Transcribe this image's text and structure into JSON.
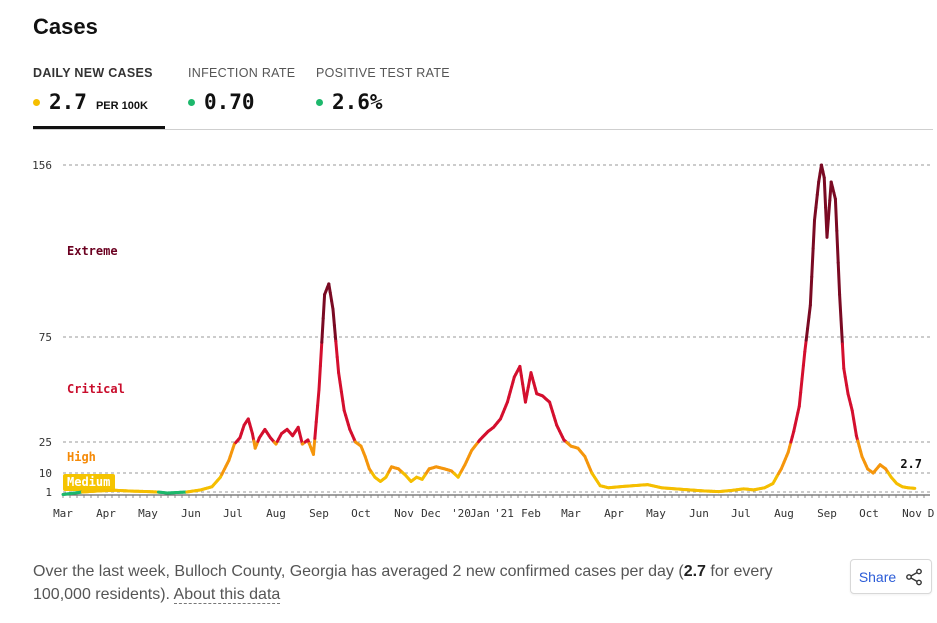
{
  "header": {
    "title": "Cases"
  },
  "tabs": [
    {
      "label": "DAILY NEW CASES",
      "value": "2.7",
      "unit": "PER 100K",
      "dot_color": "#f5be00",
      "active": true
    },
    {
      "label": "INFECTION RATE",
      "value": "0.70",
      "unit": "",
      "dot_color": "#1db86c",
      "active": false
    },
    {
      "label": "POSITIVE TEST RATE",
      "value": "2.6%",
      "unit": "",
      "dot_color": "#1db86c",
      "active": false
    }
  ],
  "chart_data": {
    "type": "line",
    "title": "",
    "xlabel": "",
    "ylabel": "",
    "x_tick_labels": [
      "Mar",
      "Apr",
      "May",
      "Jun",
      "Jul",
      "Aug",
      "Sep",
      "Oct",
      "Nov",
      "Dec",
      "'20",
      "Jan",
      "'21",
      "Feb",
      "Mar",
      "Apr",
      "May",
      "Jun",
      "Jul",
      "Aug",
      "Sep",
      "Oct",
      "Nov",
      "D"
    ],
    "y_ticks": [
      1,
      10,
      25,
      75,
      156
    ],
    "ylim": [
      0,
      156
    ],
    "grid": true,
    "zones": [
      {
        "label": "Extreme",
        "color": "#6b0020"
      },
      {
        "label": "Critical",
        "color": "#c90d2c"
      },
      {
        "label": "High",
        "color": "#f58a07"
      },
      {
        "label": "Medium",
        "color": "#ffffff",
        "background": "#f5c400"
      }
    ],
    "series": [
      {
        "values": [
          [
            "2020-03-01",
            0.5
          ],
          [
            "2020-03-15",
            1.0
          ],
          [
            "2020-03-29",
            1.6
          ],
          [
            "2020-04-08",
            1.8
          ],
          [
            "2020-04-20",
            1.4
          ],
          [
            "2020-05-01",
            1.2
          ],
          [
            "2020-05-15",
            0.8
          ],
          [
            "2020-05-29",
            1.0
          ],
          [
            "2020-06-08",
            2.0
          ],
          [
            "2020-06-16",
            3.5
          ],
          [
            "2020-06-22",
            8
          ],
          [
            "2020-06-28",
            16
          ],
          [
            "2020-07-02",
            24
          ],
          [
            "2020-07-06",
            27
          ],
          [
            "2020-07-09",
            33
          ],
          [
            "2020-07-12",
            36
          ],
          [
            "2020-07-15",
            29
          ],
          [
            "2020-07-17",
            22
          ],
          [
            "2020-07-20",
            27
          ],
          [
            "2020-07-24",
            31
          ],
          [
            "2020-07-28",
            27
          ],
          [
            "2020-08-01",
            24
          ],
          [
            "2020-08-05",
            29
          ],
          [
            "2020-08-09",
            31
          ],
          [
            "2020-08-13",
            28
          ],
          [
            "2020-08-17",
            32
          ],
          [
            "2020-08-20",
            24
          ],
          [
            "2020-08-24",
            26
          ],
          [
            "2020-08-28",
            19
          ],
          [
            "2020-09-01",
            50
          ],
          [
            "2020-09-05",
            95
          ],
          [
            "2020-09-08",
            100
          ],
          [
            "2020-09-11",
            88
          ],
          [
            "2020-09-15",
            58
          ],
          [
            "2020-09-19",
            40
          ],
          [
            "2020-09-23",
            31
          ],
          [
            "2020-09-27",
            25
          ],
          [
            "2020-10-01",
            23
          ],
          [
            "2020-10-04",
            18
          ],
          [
            "2020-10-07",
            12
          ],
          [
            "2020-10-11",
            8
          ],
          [
            "2020-10-15",
            6
          ],
          [
            "2020-10-19",
            8
          ],
          [
            "2020-10-23",
            13
          ],
          [
            "2020-10-28",
            12
          ],
          [
            "2020-11-02",
            9
          ],
          [
            "2020-11-06",
            6
          ],
          [
            "2020-11-10",
            8
          ],
          [
            "2020-11-14",
            7
          ],
          [
            "2020-11-19",
            12
          ],
          [
            "2020-11-24",
            13
          ],
          [
            "2020-11-30",
            12
          ],
          [
            "2020-12-05",
            11
          ],
          [
            "2020-12-10",
            8
          ],
          [
            "2020-12-15",
            14
          ],
          [
            "2020-12-20",
            21
          ],
          [
            "2020-12-26",
            26
          ],
          [
            "2021-01-01",
            30
          ],
          [
            "2021-01-05",
            32
          ],
          [
            "2021-01-10",
            36
          ],
          [
            "2021-01-15",
            44
          ],
          [
            "2021-01-20",
            56
          ],
          [
            "2021-01-24",
            61
          ],
          [
            "2021-01-28",
            44
          ],
          [
            "2021-02-01",
            58
          ],
          [
            "2021-02-05",
            48
          ],
          [
            "2021-02-09",
            47
          ],
          [
            "2021-02-14",
            44
          ],
          [
            "2021-02-19",
            33
          ],
          [
            "2021-02-24",
            26
          ],
          [
            "2021-03-01",
            23
          ],
          [
            "2021-03-06",
            22
          ],
          [
            "2021-03-11",
            18
          ],
          [
            "2021-03-16",
            10
          ],
          [
            "2021-03-22",
            4
          ],
          [
            "2021-03-28",
            3
          ],
          [
            "2021-04-05",
            3.5
          ],
          [
            "2021-04-15",
            4
          ],
          [
            "2021-04-25",
            4.5
          ],
          [
            "2021-05-05",
            3
          ],
          [
            "2021-05-15",
            2.5
          ],
          [
            "2021-05-25",
            2
          ],
          [
            "2021-06-05",
            1.5
          ],
          [
            "2021-06-15",
            1.2
          ],
          [
            "2021-06-25",
            1.8
          ],
          [
            "2021-07-03",
            2.5
          ],
          [
            "2021-07-10",
            2
          ],
          [
            "2021-07-18",
            3
          ],
          [
            "2021-07-24",
            5
          ],
          [
            "2021-07-30",
            12
          ],
          [
            "2021-08-04",
            20
          ],
          [
            "2021-08-08",
            30
          ],
          [
            "2021-08-12",
            42
          ],
          [
            "2021-08-16",
            68
          ],
          [
            "2021-08-20",
            90
          ],
          [
            "2021-08-23",
            130
          ],
          [
            "2021-08-26",
            148
          ],
          [
            "2021-08-28",
            156
          ],
          [
            "2021-08-30",
            150
          ],
          [
            "2021-09-01",
            122
          ],
          [
            "2021-09-04",
            148
          ],
          [
            "2021-09-07",
            140
          ],
          [
            "2021-09-10",
            95
          ],
          [
            "2021-09-13",
            60
          ],
          [
            "2021-09-16",
            48
          ],
          [
            "2021-09-19",
            40
          ],
          [
            "2021-09-22",
            28
          ],
          [
            "2021-09-26",
            18
          ],
          [
            "2021-09-30",
            12
          ],
          [
            "2021-10-04",
            10
          ],
          [
            "2021-10-09",
            14
          ],
          [
            "2021-10-13",
            12
          ],
          [
            "2021-10-17",
            8
          ],
          [
            "2021-10-21",
            5
          ],
          [
            "2021-10-25",
            3.5
          ],
          [
            "2021-10-29",
            3.0
          ],
          [
            "2021-11-03",
            2.7
          ]
        ]
      }
    ],
    "last_value_label": "2.7"
  },
  "footer": {
    "description_pre": "Over the last week, Bulloch County, Georgia has averaged 2 new confirmed cases per day (",
    "description_bold": "2.7",
    "description_post": " for every 100,000 residents). ",
    "about_link": "About this data",
    "share_label": "Share"
  }
}
